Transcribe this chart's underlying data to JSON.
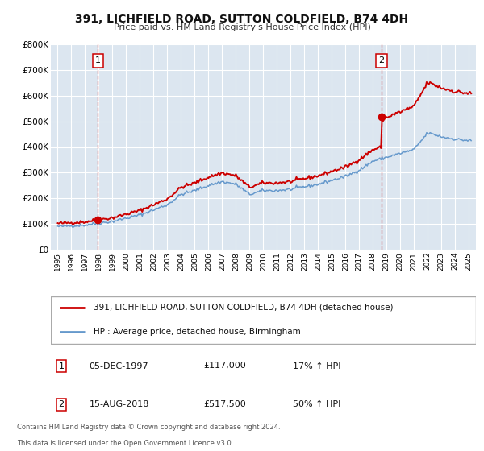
{
  "title": "391, LICHFIELD ROAD, SUTTON COLDFIELD, B74 4DH",
  "subtitle": "Price paid vs. HM Land Registry's House Price Index (HPI)",
  "legend_line1": "391, LICHFIELD ROAD, SUTTON COLDFIELD, B74 4DH (detached house)",
  "legend_line2": "HPI: Average price, detached house, Birmingham",
  "footnote1": "Contains HM Land Registry data © Crown copyright and database right 2024.",
  "footnote2": "This data is licensed under the Open Government Licence v3.0.",
  "sale1_label": "1",
  "sale1_date": "05-DEC-1997",
  "sale1_price": "£117,000",
  "sale1_hpi": "17% ↑ HPI",
  "sale2_label": "2",
  "sale2_date": "15-AUG-2018",
  "sale2_price": "£517,500",
  "sale2_hpi": "50% ↑ HPI",
  "red_color": "#cc0000",
  "blue_color": "#6699cc",
  "bg_color": "#dce6f0",
  "grid_color": "#ffffff",
  "sale1_x": 1997.92,
  "sale1_y": 117000,
  "sale2_x": 2018.62,
  "sale2_y": 517500,
  "vline1_x": 1997.92,
  "vline2_x": 2018.62,
  "ylim_min": 0,
  "ylim_max": 800000,
  "xlim_min": 1994.5,
  "xlim_max": 2025.5,
  "yticks": [
    0,
    100000,
    200000,
    300000,
    400000,
    500000,
    600000,
    700000,
    800000
  ],
  "ylabels": [
    "£0",
    "£100K",
    "£200K",
    "£300K",
    "£400K",
    "£500K",
    "£600K",
    "£700K",
    "£800K"
  ],
  "xticks": [
    1995,
    1996,
    1997,
    1998,
    1999,
    2000,
    2001,
    2002,
    2003,
    2004,
    2005,
    2006,
    2007,
    2008,
    2009,
    2010,
    2011,
    2012,
    2013,
    2014,
    2015,
    2016,
    2017,
    2018,
    2019,
    2020,
    2021,
    2022,
    2023,
    2024,
    2025
  ]
}
